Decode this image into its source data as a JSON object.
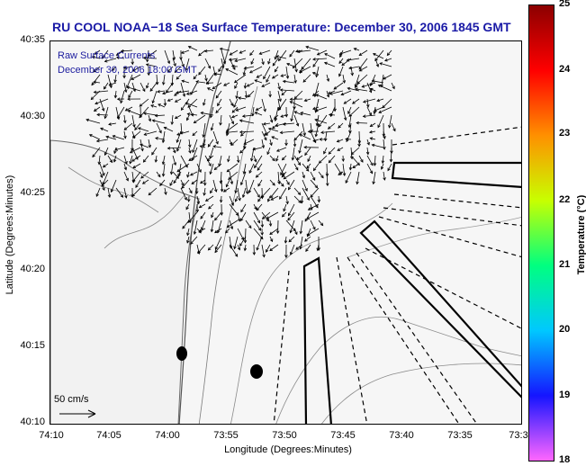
{
  "title": "RU COOL  NOAA−18  Sea Surface Temperature:  December 30, 2006 1845 GMT",
  "overlay": {
    "line1": "Raw Surface Currents",
    "line2": "December 30, 2006 18:00 GMT"
  },
  "axes": {
    "xlabel": "Longitude (Degrees:Minutes)",
    "ylabel": "Latitude (Degrees:Minutes)",
    "xticks": [
      "74:10",
      "74:05",
      "74:00",
      "73:55",
      "73:50",
      "73:45",
      "73:40",
      "73:35",
      "73:3"
    ],
    "yticks": [
      "40:35",
      "40:30",
      "40:25",
      "40:20",
      "40:15",
      "40:10"
    ]
  },
  "scale": {
    "label": "50 cm/s"
  },
  "colorbar": {
    "label": "Temperature (°C)",
    "ticks": [
      "25",
      "24",
      "23",
      "22",
      "21",
      "20",
      "19",
      "18"
    ],
    "range": [
      18,
      25
    ],
    "colors": [
      "#ff66ff",
      "#1515ff",
      "#00c8ff",
      "#00ff80",
      "#c8ff00",
      "#ff9000",
      "#ff0000",
      "#8b0000"
    ]
  }
}
